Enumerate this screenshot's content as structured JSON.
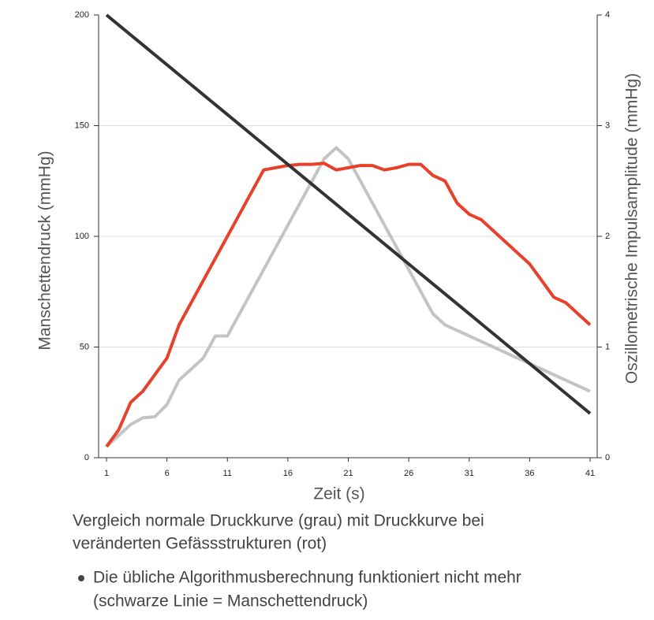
{
  "chart_data": {
    "type": "line",
    "xlabel": "Zeit (s)",
    "ylabel": "Manschettendruck (mmHg)",
    "y2label": "Oszillometrische Impulsamplitude (mmHg)",
    "x": [
      1,
      2,
      3,
      4,
      5,
      6,
      7,
      8,
      9,
      10,
      11,
      12,
      13,
      14,
      15,
      16,
      17,
      18,
      19,
      20,
      21,
      22,
      23,
      24,
      25,
      26,
      27,
      28,
      29,
      30,
      31,
      32,
      33,
      34,
      35,
      36,
      37,
      38,
      39,
      40,
      41
    ],
    "xlim": [
      1,
      41
    ],
    "xticks": [
      1,
      6,
      11,
      16,
      21,
      26,
      31,
      36,
      41
    ],
    "ylim": [
      0,
      200
    ],
    "yticks": [
      0,
      50,
      100,
      150,
      200
    ],
    "y2lim": [
      0,
      4
    ],
    "y2ticks": [
      0,
      1,
      2,
      3,
      4
    ],
    "grid": true,
    "series": [
      {
        "color": "#333333",
        "values": [
          200,
          195.5,
          191,
          186.5,
          182,
          177.5,
          173,
          168.5,
          164,
          159.5,
          155,
          150.5,
          146,
          141.5,
          137,
          132.5,
          128,
          123.5,
          119,
          114.5,
          110,
          105.5,
          101,
          96.5,
          92,
          87.5,
          83,
          78.5,
          74,
          69.5,
          65,
          60.5,
          56,
          51.5,
          47,
          42.5,
          38,
          33.5,
          29,
          24.5,
          20
        ]
      },
      {
        "color": "#e8402a",
        "axis": "y2",
        "values": [
          0.1,
          0.25,
          0.5,
          0.6,
          0.75,
          0.9,
          1.2,
          1.4,
          1.6,
          1.8,
          2.0,
          2.2,
          2.4,
          2.6,
          2.62,
          2.64,
          2.65,
          2.65,
          2.66,
          2.6,
          2.62,
          2.64,
          2.64,
          2.6,
          2.62,
          2.65,
          2.65,
          2.55,
          2.5,
          2.3,
          2.2,
          2.15,
          2.05,
          1.95,
          1.85,
          1.75,
          1.6,
          1.45,
          1.4,
          1.3,
          1.2
        ]
      },
      {
        "color": "#c4c4c4",
        "axis": "y2",
        "values": [
          0.1,
          0.2,
          0.3,
          0.36,
          0.37,
          0.48,
          0.7,
          0.8,
          0.9,
          1.1,
          1.1,
          1.3,
          1.5,
          1.7,
          1.9,
          2.1,
          2.3,
          2.5,
          2.7,
          2.8,
          2.7,
          2.5,
          2.3,
          2.1,
          1.9,
          1.7,
          1.5,
          1.3,
          1.2,
          1.15,
          1.1,
          1.05,
          1.0,
          0.95,
          0.9,
          0.85,
          0.8,
          0.75,
          0.7,
          0.65,
          0.6
        ]
      }
    ]
  },
  "caption": {
    "lines": [
      "Vergleich normale Druckkurve (grau) mit Druckkurve bei",
      "veränderten Gefässstrukturen (rot)"
    ]
  },
  "bullet": {
    "lines": [
      "Die übliche Algorithmusberechnung funktioniert nicht mehr",
      "(schwarze Linie = Manschettendruck)"
    ]
  }
}
